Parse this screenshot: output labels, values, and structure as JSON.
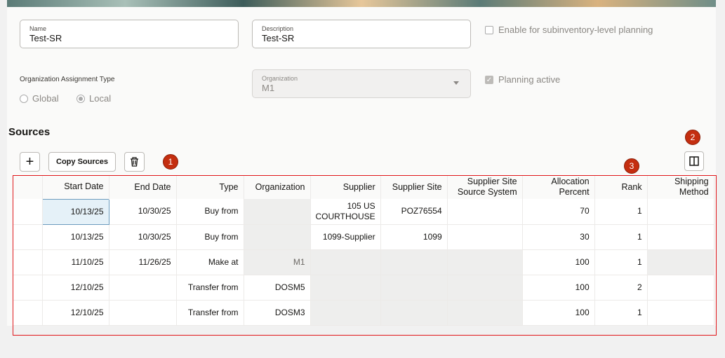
{
  "form": {
    "name": {
      "label": "Name",
      "value": "Test-SR"
    },
    "description": {
      "label": "Description",
      "value": "Test-SR"
    },
    "enable_subinventory": {
      "label": "Enable for subinventory-level planning",
      "checked": false
    },
    "org_assignment_type": {
      "label": "Organization Assignment Type",
      "options": [
        "Global",
        "Local"
      ],
      "selected": "Local"
    },
    "organization": {
      "label": "Organization",
      "value": "M1"
    },
    "planning_active": {
      "label": "Planning active",
      "checked": true
    }
  },
  "sources": {
    "title": "Sources",
    "add_icon": "plus-icon",
    "copy_label": "Copy Sources",
    "delete_icon": "trash-icon",
    "columns_icon": "columns-icon",
    "badges": [
      "1",
      "2",
      "3"
    ],
    "columns": [
      "Start Date",
      "End Date",
      "Type",
      "Organization",
      "Supplier",
      "Supplier Site",
      "Supplier Site Source System",
      "Allocation Percent",
      "Rank",
      "Shipping Method"
    ],
    "rows": [
      [
        "10/13/25",
        "10/30/25",
        "Buy from",
        "",
        "105 US COURTHOUSE",
        "POZ76554",
        "",
        "70",
        "1",
        ""
      ],
      [
        "10/13/25",
        "10/30/25",
        "Buy from",
        "",
        "1099-Supplier",
        "1099",
        "",
        "30",
        "1",
        ""
      ],
      [
        "11/10/25",
        "11/26/25",
        "Make at",
        "M1",
        "",
        "",
        "",
        "100",
        "1",
        ""
      ],
      [
        "12/10/25",
        "",
        "Transfer from",
        "DOSM5",
        "",
        "",
        "",
        "100",
        "2",
        ""
      ],
      [
        "12/10/25",
        "",
        "Transfer from",
        "DOSM3",
        "",
        "",
        "",
        "100",
        "1",
        ""
      ]
    ]
  },
  "colors": {
    "badge": "#c42e10",
    "highlight": "#e0161a"
  }
}
